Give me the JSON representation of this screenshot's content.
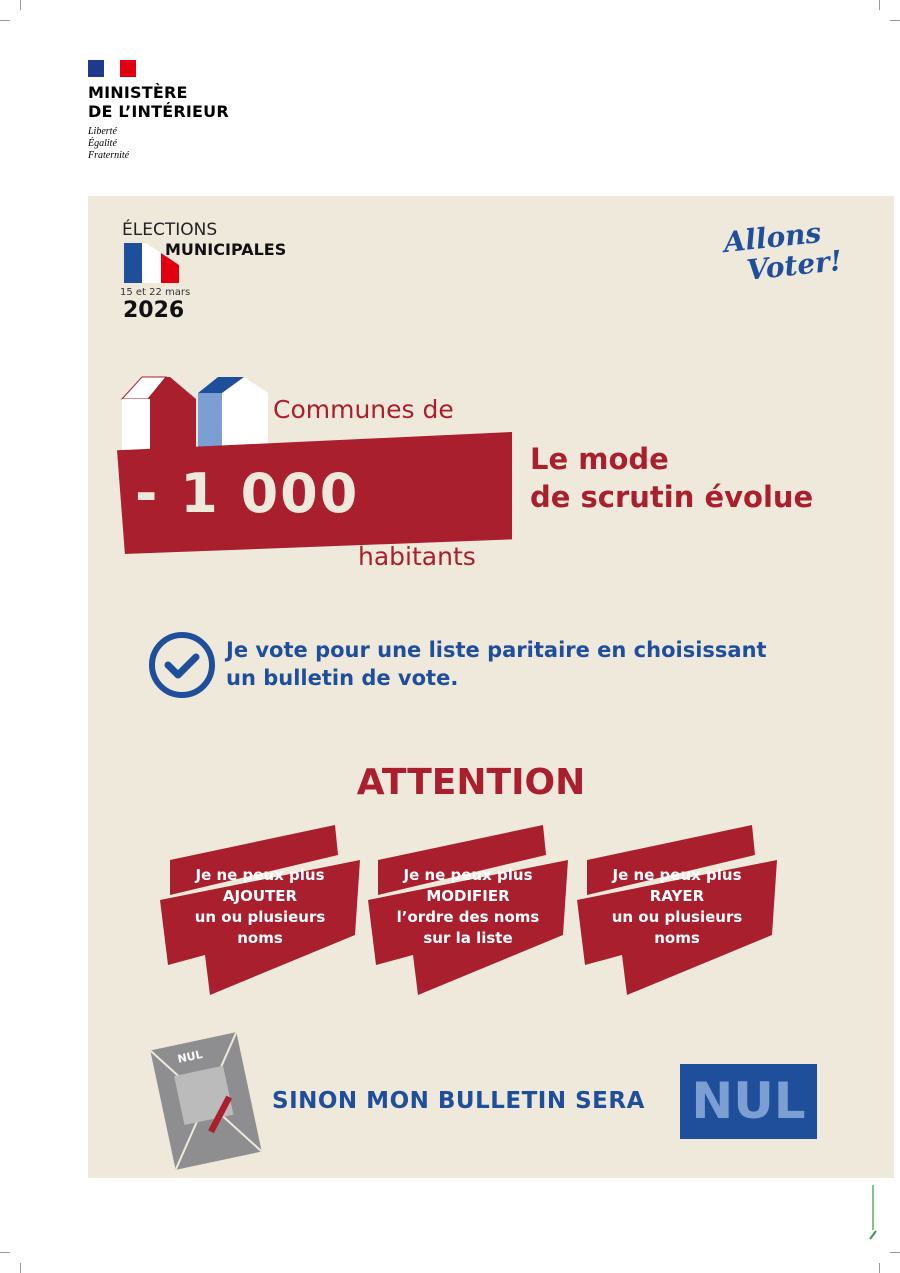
{
  "ministry": {
    "name_line1": "MINISTÈRE",
    "name_line2": "DE L’INTÉRIEUR",
    "motto": [
      "Liberté",
      "Égalité",
      "Fraternité"
    ]
  },
  "election": {
    "line1": "ÉLECTIONS",
    "line2": "MUNICIPALES",
    "dates": "15 et 22 mars",
    "year": "2026"
  },
  "slogan": {
    "line1": "Allons",
    "line2": "Voter!"
  },
  "communes": {
    "prefix": "Communes de",
    "number": "- 1 000",
    "suffix": "habitants"
  },
  "headline": {
    "line1": "Le mode",
    "line2": "de scrutin évolue"
  },
  "instruction": {
    "line1": "Je vote pour une liste paritaire en choisissant",
    "line2": "un bulletin de vote."
  },
  "attention": "ATTENTION",
  "rules": [
    {
      "line1": "Je ne peux plus",
      "line2": "AJOUTER",
      "line3": "un ou plusieurs",
      "line4": "noms"
    },
    {
      "line1": "Je ne peux plus",
      "line2": "MODIFIER",
      "line3": "l’ordre des noms",
      "line4": "sur la liste"
    },
    {
      "line1": "Je ne peux plus",
      "line2": "RAYER",
      "line3": "un ou plusieurs",
      "line4": "noms"
    }
  ],
  "ballot_label": "NUL",
  "warning": "SINON MON BULLETIN SERA",
  "nul": "NUL",
  "colors": {
    "red": "#a91f2e",
    "blue": "#1f4e9a",
    "beige": "#efe9dc",
    "light_blue": "#7b9fd3"
  }
}
